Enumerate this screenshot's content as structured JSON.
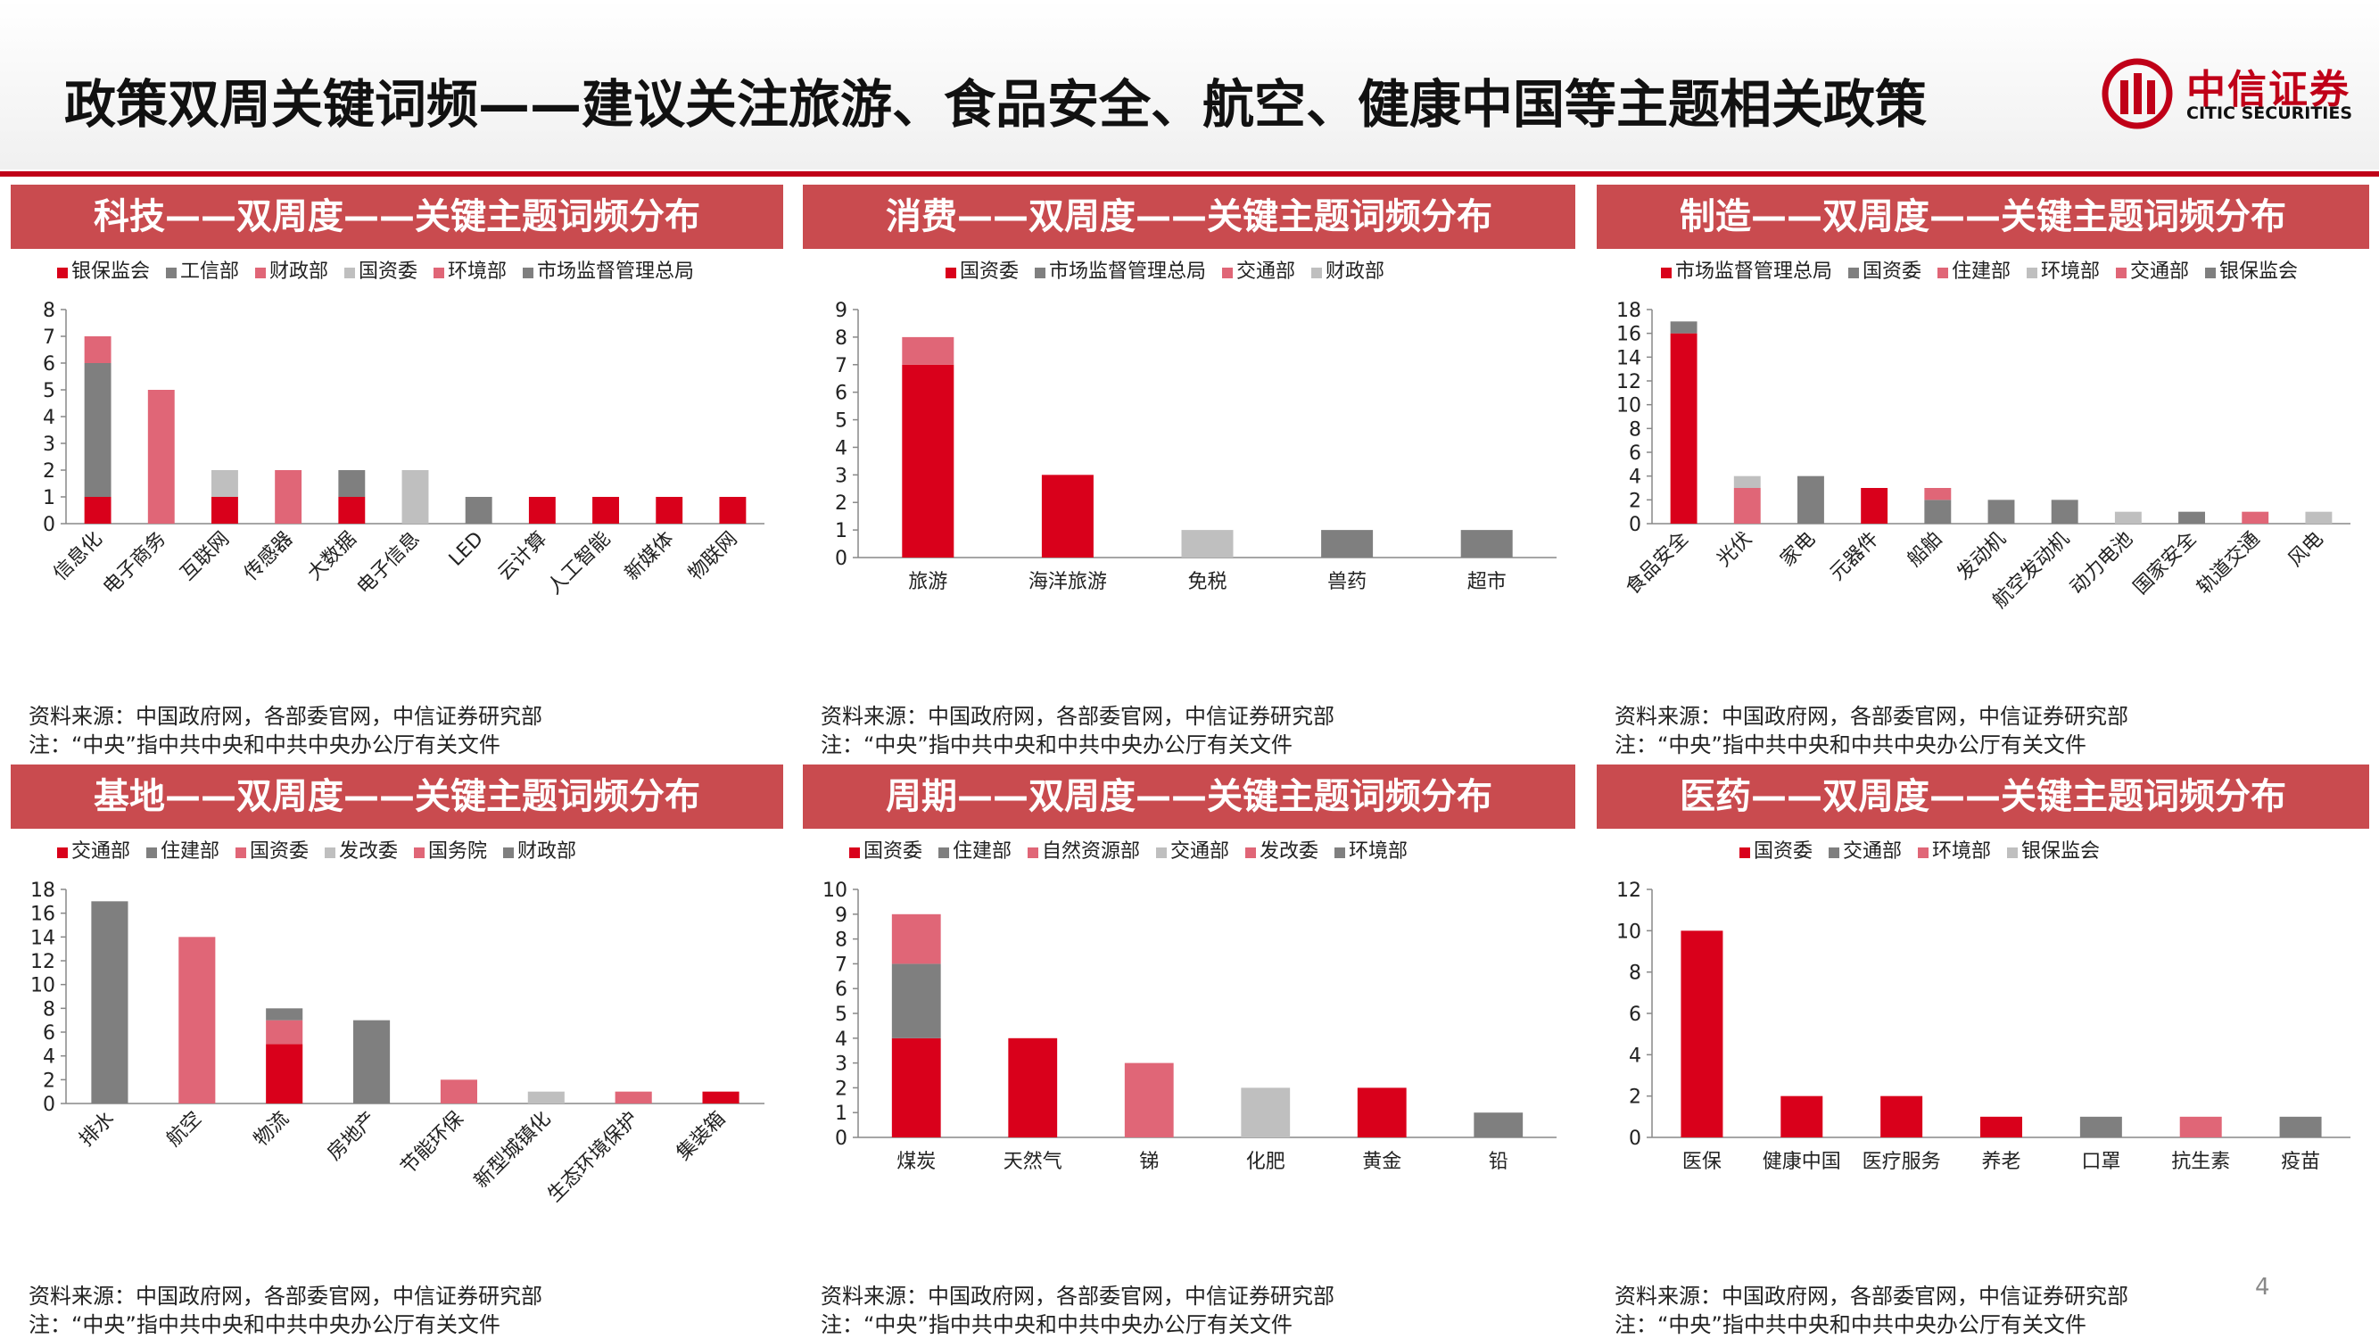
{
  "page": {
    "title": "政策双周关键词频——建议关注旅游、食品安全、航空、健康中国等主题相关政策",
    "page_number": "4",
    "logo_cn": "中信证券",
    "logo_en": "CITIC SECURITIES"
  },
  "colors": {
    "accent": "#c00018",
    "panel_title_bg": "#c94b4f",
    "red": "#d9001b",
    "dark_gray": "#7f7f7f",
    "pink": "#e06677",
    "light_gray": "#bfbfbf"
  },
  "panels": [
    {
      "title": "科技——双周度——关键主题词频分布",
      "source_line1": "资料来源：中国政府网，各部委官网，中信证券研究部",
      "source_line2": "注：“中央”指中共中央和中共中央办公厅有关文件"
    },
    {
      "title": "消费——双周度——关键主题词频分布",
      "source_line1": "资料来源：中国政府网，各部委官网，中信证券研究部",
      "source_line2": "注：“中央”指中共中央和中共中央办公厅有关文件"
    },
    {
      "title": "制造——双周度——关键主题词频分布",
      "source_line1": "资料来源：中国政府网，各部委官网，中信证券研究部",
      "source_line2": "注：“中央”指中共中央和中共中央办公厅有关文件"
    },
    {
      "title": "基地——双周度——关键主题词频分布",
      "source_line1": "资料来源：中国政府网，各部委官网，中信证券研究部",
      "source_line2": "注：“中央”指中共中央和中共中央办公厅有关文件"
    },
    {
      "title": "周期——双周度——关键主题词频分布",
      "source_line1": "资料来源：中国政府网，各部委官网，中信证券研究部",
      "source_line2": "注：“中央”指中共中央和中共中央办公厅有关文件"
    },
    {
      "title": "医药——双周度——关键主题词频分布",
      "source_line1": "资料来源：中国政府网，各部委官网，中信证券研究部",
      "source_line2": "注：“中央”指中共中央和中共中央办公厅有关文件"
    }
  ],
  "chart_data": [
    {
      "type": "bar",
      "stacked": true,
      "categories": [
        "信息化",
        "电子商务",
        "互联网",
        "传感器",
        "大数据",
        "电子信息",
        "LED",
        "云计算",
        "人工智能",
        "新媒体",
        "物联网"
      ],
      "series": [
        {
          "name": "银保监会",
          "color": "#d9001b",
          "values": [
            1,
            0,
            1,
            0,
            1,
            0,
            0,
            1,
            1,
            1,
            1
          ]
        },
        {
          "name": "工信部",
          "color": "#7f7f7f",
          "values": [
            5,
            0,
            0,
            0,
            1,
            0,
            1,
            0,
            0,
            0,
            0
          ]
        },
        {
          "name": "财政部",
          "color": "#e06677",
          "values": [
            1,
            5,
            0,
            2,
            0,
            0,
            0,
            0,
            0,
            0,
            0
          ]
        },
        {
          "name": "国资委",
          "color": "#bfbfbf",
          "values": [
            0,
            0,
            1,
            0,
            0,
            2,
            0,
            0,
            0,
            0,
            0
          ]
        },
        {
          "name": "环境部",
          "color": "#e06677",
          "values": [
            0,
            0,
            0,
            0,
            0,
            0,
            0,
            0,
            0,
            0,
            0
          ]
        },
        {
          "name": "市场监督管理总局",
          "color": "#7f7f7f",
          "values": [
            0,
            0,
            0,
            0,
            0,
            0,
            0,
            0,
            0,
            0,
            0
          ]
        }
      ],
      "ylim": [
        0,
        8
      ],
      "yticks": [
        0,
        1,
        2,
        3,
        4,
        5,
        6,
        7,
        8
      ],
      "rotate_labels": true,
      "legend": "top"
    },
    {
      "type": "bar",
      "stacked": true,
      "categories": [
        "旅游",
        "海洋旅游",
        "免税",
        "兽药",
        "超市"
      ],
      "series": [
        {
          "name": "国资委",
          "color": "#d9001b",
          "values": [
            7,
            3,
            0,
            0,
            0
          ]
        },
        {
          "name": "市场监督管理总局",
          "color": "#7f7f7f",
          "values": [
            0,
            0,
            0,
            1,
            1
          ]
        },
        {
          "name": "交通部",
          "color": "#e06677",
          "values": [
            1,
            0,
            0,
            0,
            0
          ]
        },
        {
          "name": "财政部",
          "color": "#bfbfbf",
          "values": [
            0,
            0,
            1,
            0,
            0
          ]
        }
      ],
      "ylim": [
        0,
        9
      ],
      "yticks": [
        0,
        1,
        2,
        3,
        4,
        5,
        6,
        7,
        8,
        9
      ],
      "rotate_labels": false,
      "legend": "top"
    },
    {
      "type": "bar",
      "stacked": true,
      "categories": [
        "食品安全",
        "光伏",
        "家电",
        "元器件",
        "船舶",
        "发动机",
        "航空发动机",
        "动力电池",
        "国家安全",
        "轨道交通",
        "风电"
      ],
      "series": [
        {
          "name": "市场监督管理总局",
          "color": "#d9001b",
          "values": [
            16,
            0,
            0,
            3,
            0,
            0,
            0,
            0,
            0,
            0,
            0
          ]
        },
        {
          "name": "国资委",
          "color": "#7f7f7f",
          "values": [
            1,
            0,
            4,
            0,
            2,
            2,
            2,
            0,
            1,
            0,
            0
          ]
        },
        {
          "name": "住建部",
          "color": "#e06677",
          "values": [
            0,
            3,
            0,
            0,
            1,
            0,
            0,
            0,
            0,
            0,
            0
          ]
        },
        {
          "name": "环境部",
          "color": "#bfbfbf",
          "values": [
            0,
            1,
            0,
            0,
            0,
            0,
            0,
            1,
            0,
            0,
            1
          ]
        },
        {
          "name": "交通部",
          "color": "#e06677",
          "values": [
            0,
            0,
            0,
            0,
            0,
            0,
            0,
            0,
            0,
            1,
            0
          ]
        },
        {
          "name": "银保监会",
          "color": "#7f7f7f",
          "values": [
            0,
            0,
            0,
            0,
            0,
            0,
            0,
            0,
            0,
            0,
            0
          ]
        }
      ],
      "ylim": [
        0,
        18
      ],
      "yticks": [
        0,
        2,
        4,
        6,
        8,
        10,
        12,
        14,
        16,
        18
      ],
      "rotate_labels": true,
      "legend": "top"
    },
    {
      "type": "bar",
      "stacked": true,
      "categories": [
        "排水",
        "航空",
        "物流",
        "房地产",
        "节能环保",
        "新型城镇化",
        "生态环境保护",
        "集装箱"
      ],
      "series": [
        {
          "name": "交通部",
          "color": "#d9001b",
          "values": [
            0,
            0,
            5,
            0,
            0,
            0,
            0,
            1
          ]
        },
        {
          "name": "住建部",
          "color": "#7f7f7f",
          "values": [
            17,
            0,
            0,
            7,
            0,
            0,
            0,
            0
          ]
        },
        {
          "name": "国资委",
          "color": "#e06677",
          "values": [
            0,
            14,
            2,
            0,
            2,
            0,
            1,
            0
          ]
        },
        {
          "name": "发改委",
          "color": "#bfbfbf",
          "values": [
            0,
            0,
            0,
            0,
            0,
            1,
            0,
            0
          ]
        },
        {
          "name": "国务院",
          "color": "#e06677",
          "values": [
            0,
            0,
            0,
            0,
            0,
            0,
            0,
            0
          ]
        },
        {
          "name": "财政部",
          "color": "#7f7f7f",
          "values": [
            0,
            0,
            1,
            0,
            0,
            0,
            0,
            0
          ]
        }
      ],
      "ylim": [
        0,
        18
      ],
      "yticks": [
        0,
        2,
        4,
        6,
        8,
        10,
        12,
        14,
        16,
        18
      ],
      "rotate_labels": true,
      "legend": "top"
    },
    {
      "type": "bar",
      "stacked": true,
      "categories": [
        "煤炭",
        "天然气",
        "锑",
        "化肥",
        "黄金",
        "铅"
      ],
      "series": [
        {
          "name": "国资委",
          "color": "#d9001b",
          "values": [
            4,
            4,
            0,
            0,
            2,
            0
          ]
        },
        {
          "name": "住建部",
          "color": "#7f7f7f",
          "values": [
            3,
            0,
            0,
            0,
            0,
            1
          ]
        },
        {
          "name": "自然资源部",
          "color": "#e06677",
          "values": [
            2,
            0,
            3,
            0,
            0,
            0
          ]
        },
        {
          "name": "交通部",
          "color": "#bfbfbf",
          "values": [
            0,
            0,
            0,
            2,
            0,
            0
          ]
        },
        {
          "name": "发改委",
          "color": "#e06677",
          "values": [
            0,
            0,
            0,
            0,
            0,
            0
          ]
        },
        {
          "name": "环境部",
          "color": "#7f7f7f",
          "values": [
            0,
            0,
            0,
            0,
            0,
            0
          ]
        }
      ],
      "ylim": [
        0,
        10
      ],
      "yticks": [
        0,
        1,
        2,
        3,
        4,
        5,
        6,
        7,
        8,
        9,
        10
      ],
      "rotate_labels": false,
      "legend": "top"
    },
    {
      "type": "bar",
      "stacked": true,
      "categories": [
        "医保",
        "健康中国",
        "医疗服务",
        "养老",
        "口罩",
        "抗生素",
        "疫苗"
      ],
      "series": [
        {
          "name": "国资委",
          "color": "#d9001b",
          "values": [
            10,
            2,
            2,
            1,
            0,
            0,
            0
          ]
        },
        {
          "name": "交通部",
          "color": "#7f7f7f",
          "values": [
            0,
            0,
            0,
            0,
            1,
            0,
            1
          ]
        },
        {
          "name": "环境部",
          "color": "#e06677",
          "values": [
            0,
            0,
            0,
            0,
            0,
            1,
            0
          ]
        },
        {
          "name": "银保监会",
          "color": "#bfbfbf",
          "values": [
            0,
            0,
            0,
            0,
            0,
            0,
            0
          ]
        }
      ],
      "ylim": [
        0,
        12
      ],
      "yticks": [
        0,
        2,
        4,
        6,
        8,
        10,
        12
      ],
      "rotate_labels": false,
      "legend": "top"
    }
  ]
}
